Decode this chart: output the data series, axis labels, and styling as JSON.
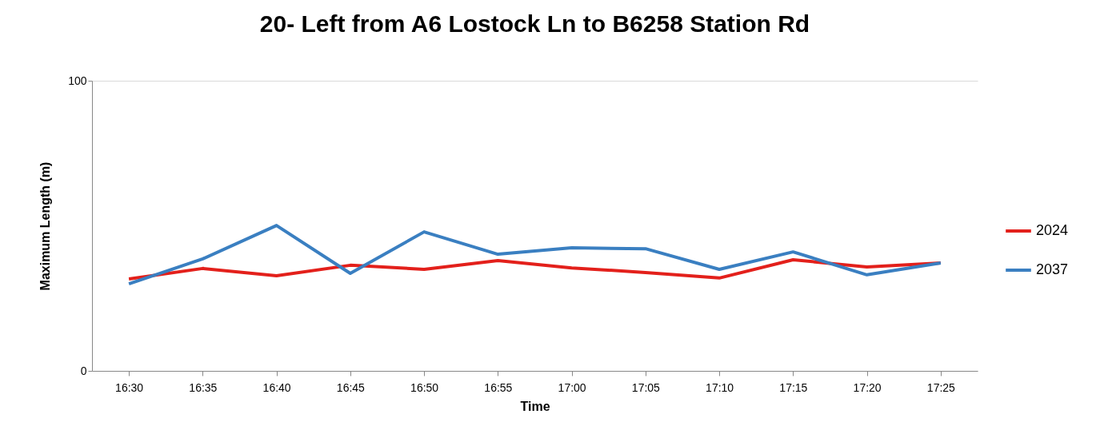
{
  "chart_data": {
    "type": "line",
    "title": "20- Left from A6 Lostock Ln to B6258 Station Rd",
    "xlabel": "Time",
    "ylabel": "Maximum Length (m)",
    "categories": [
      "16:30",
      "16:35",
      "16:40",
      "16:45",
      "16:50",
      "16:55",
      "17:00",
      "17:05",
      "17:10",
      "17:15",
      "17:20",
      "17:25"
    ],
    "series": [
      {
        "name": "2024",
        "color": "#e3201b",
        "values": [
          31.7,
          35.3,
          32.8,
          36.4,
          35.0,
          38.0,
          35.5,
          33.9,
          32.0,
          38.3,
          35.8,
          37.2
        ]
      },
      {
        "name": "2037",
        "color": "#3a7fc1",
        "values": [
          30.0,
          38.6,
          50.1,
          33.6,
          47.9,
          40.2,
          42.4,
          42.1,
          35.0,
          41.0,
          33.1,
          37.2
        ]
      }
    ],
    "ylim": [
      0,
      100
    ],
    "yticks": [
      0,
      100
    ],
    "grid": "y",
    "legend": "right",
    "marker": "none",
    "line_style": "solid"
  }
}
